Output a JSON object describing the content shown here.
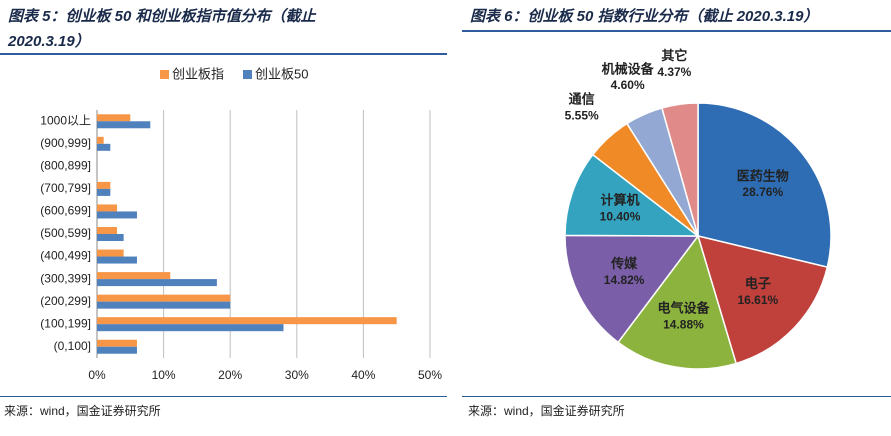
{
  "chart_data": [
    {
      "type": "hbar",
      "title": "图表 5：创业板 50 和创业板指市值分布（截止 2020.3.19）",
      "categories": [
        "1000以上",
        "(900,999]",
        "(800,899]",
        "(700,799]",
        "(600,699]",
        "(500,599]",
        "(400,499]",
        "(300,399]",
        "(200,299]",
        "(100,199]",
        "(0,100]"
      ],
      "series": [
        {
          "name": "创业板指",
          "color": "#F79646",
          "values": [
            5,
            1,
            0,
            2,
            3,
            3,
            4,
            11,
            20,
            45,
            6
          ]
        },
        {
          "name": "创业板50",
          "color": "#4F81BD",
          "values": [
            8,
            2,
            0,
            2,
            6,
            4,
            6,
            18,
            20,
            28,
            6
          ]
        }
      ],
      "xlim": [
        0,
        50
      ],
      "xticks": [
        {
          "value": 0,
          "label": "0%"
        },
        {
          "value": 10,
          "label": "10%"
        },
        {
          "value": 20,
          "label": "20%"
        },
        {
          "value": 30,
          "label": "30%"
        },
        {
          "value": 40,
          "label": "40%"
        },
        {
          "value": 50,
          "label": "50%"
        }
      ],
      "grid": true,
      "source": "来源：wind，国金证券研究所"
    },
    {
      "type": "pie",
      "title": "图表 6：创业板 50 指数行业分布（截止 2020.3.19）",
      "categories": [
        "医药生物",
        "电子",
        "电气设备",
        "传媒",
        "计算机",
        "通信",
        "机械设备",
        "其它"
      ],
      "values": [
        28.76,
        16.61,
        14.88,
        14.82,
        10.4,
        5.55,
        4.6,
        4.37
      ],
      "value_labels": [
        "28.76%",
        "16.61%",
        "14.88%",
        "14.82%",
        "10.40%",
        "5.55%",
        "4.60%",
        "4.37%"
      ],
      "colors": [
        "#2E6DB4",
        "#C0403C",
        "#8DB33F",
        "#7A5EA8",
        "#33A3BF",
        "#F08A26",
        "#93A9D4",
        "#E08A8A"
      ],
      "source": "来源：wind，国金证券研究所"
    }
  ]
}
